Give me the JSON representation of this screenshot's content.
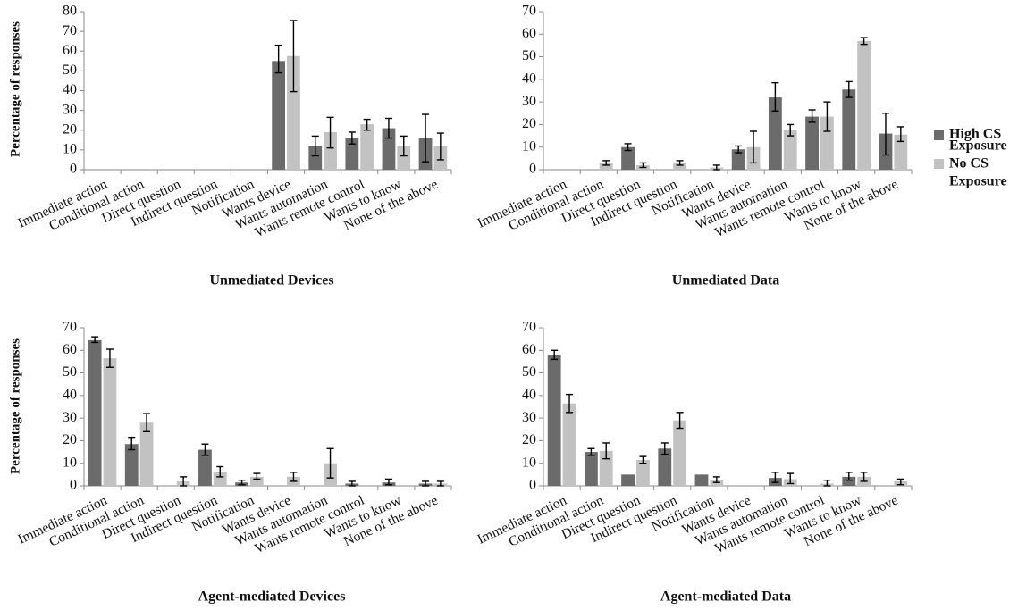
{
  "chart_data": [
    {
      "type": "bar",
      "title": "Unmediated Devices",
      "ylabel": "Percentage of responses",
      "ylim": [
        0,
        80
      ],
      "yticks": [
        0,
        10,
        20,
        30,
        40,
        50,
        60,
        70,
        80
      ],
      "categories": [
        "Immediate action",
        "Conditional action",
        "Direct question",
        "Indirect  question",
        "Notification",
        "Wants device",
        "Wants automation",
        "Wants remote control",
        "Wants to know",
        "None of the above"
      ],
      "series": [
        {
          "name": "High CS Exposure",
          "values": [
            0,
            0,
            0,
            0,
            0,
            55,
            12,
            16,
            21,
            16
          ],
          "error": [
            [
              0,
              0
            ],
            [
              0,
              0
            ],
            [
              0,
              0
            ],
            [
              0,
              0
            ],
            [
              0,
              0
            ],
            [
              49,
              63
            ],
            [
              7,
              17
            ],
            [
              13,
              19
            ],
            [
              16,
              26
            ],
            [
              4,
              28
            ]
          ]
        },
        {
          "name": "No CS Exposure",
          "values": [
            0,
            0,
            0,
            0,
            0,
            57.5,
            19,
            23,
            12,
            12
          ],
          "error": [
            [
              0,
              0
            ],
            [
              0,
              0
            ],
            [
              0,
              0
            ],
            [
              0,
              0
            ],
            [
              0,
              0
            ],
            [
              39.5,
              75.5
            ],
            [
              11,
              26.5
            ],
            [
              20,
              25.5
            ],
            [
              7,
              17
            ],
            [
              5,
              18.5
            ]
          ]
        }
      ]
    },
    {
      "type": "bar",
      "title": "Unmediated Data",
      "ylabel": "",
      "ylim": [
        0,
        70
      ],
      "yticks": [
        0,
        10,
        20,
        30,
        40,
        50,
        60,
        70
      ],
      "categories": [
        "Immediate action",
        "Conditional action",
        "Direct question",
        "Indirect  question",
        "Notification",
        "Wants device",
        "Wants automation",
        "Wants remote control",
        "Wants to know",
        "None of the above"
      ],
      "series": [
        {
          "name": "High CS Exposure",
          "values": [
            0,
            0,
            10,
            0,
            0,
            9,
            32,
            23.5,
            35.5,
            16
          ],
          "error": [
            [
              0,
              0
            ],
            [
              0,
              0
            ],
            [
              8.5,
              11.5
            ],
            [
              0,
              0
            ],
            [
              0,
              0
            ],
            [
              7.5,
              10.5
            ],
            [
              26,
              38.5
            ],
            [
              21,
              26.5
            ],
            [
              32,
              39
            ],
            [
              6.5,
              25
            ]
          ]
        },
        {
          "name": "No CS Exposure",
          "values": [
            0,
            3,
            2,
            3,
            1,
            10,
            17.5,
            23.5,
            57,
            15.5
          ],
          "error": [
            [
              0,
              0
            ],
            [
              2,
              4
            ],
            [
              1,
              3
            ],
            [
              2,
              4
            ],
            [
              0,
              2
            ],
            [
              3,
              17
            ],
            [
              15,
              20
            ],
            [
              17,
              30
            ],
            [
              55.5,
              58.5
            ],
            [
              12.5,
              19
            ]
          ]
        }
      ]
    },
    {
      "type": "bar",
      "title": "Agent-mediated Devices",
      "ylabel": "Percentage of responses",
      "ylim": [
        0,
        70
      ],
      "yticks": [
        0,
        10,
        20,
        30,
        40,
        50,
        60,
        70
      ],
      "categories": [
        "Immediate action",
        "Conditional action",
        "Direct question",
        "Indirect  question",
        "Notification",
        "Wants device",
        "Wants automation",
        "Wants remote control",
        "Wants to know",
        "None of the above"
      ],
      "series": [
        {
          "name": "High CS Exposure",
          "values": [
            64.5,
            18.5,
            0,
            16,
            1.5,
            0,
            0,
            1,
            1.5,
            1
          ],
          "error": [
            [
              63.5,
              66
            ],
            [
              16,
              21.5
            ],
            [
              0,
              0
            ],
            [
              13.5,
              18.5
            ],
            [
              0.5,
              2.5
            ],
            [
              0,
              0
            ],
            [
              0,
              0
            ],
            [
              0,
              2
            ],
            [
              0.5,
              3
            ],
            [
              0,
              2
            ]
          ]
        },
        {
          "name": "No CS Exposure",
          "values": [
            56.5,
            28,
            2,
            6,
            4,
            4,
            10,
            0,
            0,
            1
          ],
          "error": [
            [
              52.5,
              60.5
            ],
            [
              24,
              32
            ],
            [
              0,
              4
            ],
            [
              4,
              8.5
            ],
            [
              3,
              5.5
            ],
            [
              2,
              6
            ],
            [
              3.5,
              16.5
            ],
            [
              0,
              0
            ],
            [
              0,
              0
            ],
            [
              0,
              2
            ]
          ]
        }
      ]
    },
    {
      "type": "bar",
      "title": "Agent-mediated Data",
      "ylabel": "",
      "ylim": [
        0,
        70
      ],
      "yticks": [
        0,
        10,
        20,
        30,
        40,
        50,
        60,
        70
      ],
      "categories": [
        "Immediate action",
        "Conditional action",
        "Direct question",
        "Indirect  question",
        "Notification",
        "Wants device",
        "Wants automation",
        "Wants remote control",
        "Wants to know",
        "None of the above"
      ],
      "series": [
        {
          "name": "High CS Exposure",
          "values": [
            58,
            15,
            5,
            16.5,
            5,
            0,
            3.5,
            0,
            4,
            0
          ],
          "error": [
            [
              56,
              60
            ],
            [
              13.5,
              16.5
            ],
            [
              5,
              5
            ],
            [
              14,
              19
            ],
            [
              5,
              5
            ],
            [
              0,
              0
            ],
            [
              1.5,
              6
            ],
            [
              0,
              0
            ],
            [
              2.5,
              6
            ],
            [
              0,
              0
            ]
          ]
        },
        {
          "name": "No CS Exposure",
          "values": [
            36.5,
            15.5,
            11.5,
            29,
            2.5,
            0,
            3,
            1,
            4,
            2
          ],
          "error": [
            [
              32.5,
              40.5
            ],
            [
              12,
              19
            ],
            [
              10,
              13
            ],
            [
              25.5,
              32.5
            ],
            [
              1.5,
              4
            ],
            [
              0,
              0
            ],
            [
              1,
              5.5
            ],
            [
              0,
              2.5
            ],
            [
              2,
              6
            ],
            [
              0.5,
              3
            ]
          ]
        }
      ]
    }
  ],
  "legend": {
    "position": "right",
    "items": [
      {
        "label_lines": [
          "High CS",
          "Exposure"
        ],
        "color": "#6b6b6b"
      },
      {
        "label_lines": [
          "No CS",
          "Exposure"
        ],
        "color": "#c2c2c2"
      }
    ]
  },
  "colors": {
    "high": "#6b6b6b",
    "no": "#c2c2c2",
    "axis": "#8a8a8a",
    "error": "#000000"
  }
}
